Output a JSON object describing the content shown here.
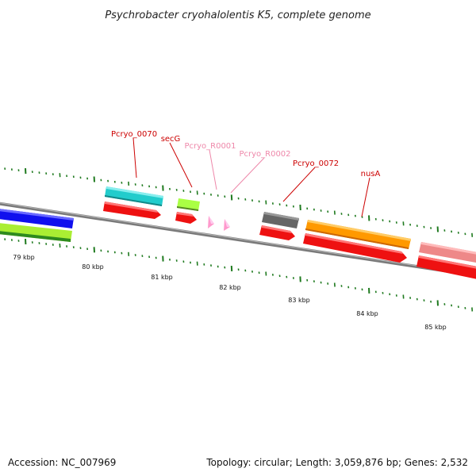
{
  "title": "Psychrobacter cryohalolentis K5, complete genome",
  "footer": {
    "accession": "Accession: NC_007969",
    "summary": "Topology: circular; Length: 3,059,876 bp; Genes: 2,532"
  },
  "colors": {
    "backbone": "#7a7a7a",
    "tick": "#1f7a1f",
    "cds": "#ee1111",
    "label_dark": "#cc0000",
    "label_light": "#ee88aa"
  },
  "scale": {
    "labels": [
      "79 kbp",
      "80 kbp",
      "81 kbp",
      "82 kbp",
      "83 kbp",
      "84 kbp",
      "85 kbp"
    ]
  },
  "gene_labels": [
    {
      "text": "Pcryo_0070",
      "color": "#cc0000"
    },
    {
      "text": "secG",
      "color": "#cc0000"
    },
    {
      "text": "Pcryo_R0001",
      "color": "#ee88aa"
    },
    {
      "text": "Pcryo_R0002",
      "color": "#ee88aa"
    },
    {
      "text": "Pcryo_0072",
      "color": "#cc0000"
    },
    {
      "text": "nusA",
      "color": "#cc0000"
    }
  ],
  "features": {
    "genes": [
      "#1010ee",
      "#aaee33",
      "#22cccc",
      "#aaff44",
      "#666666",
      "#ff9900",
      "#ee8888"
    ],
    "cds": "#ee1111",
    "rna": "#ff99cc"
  }
}
